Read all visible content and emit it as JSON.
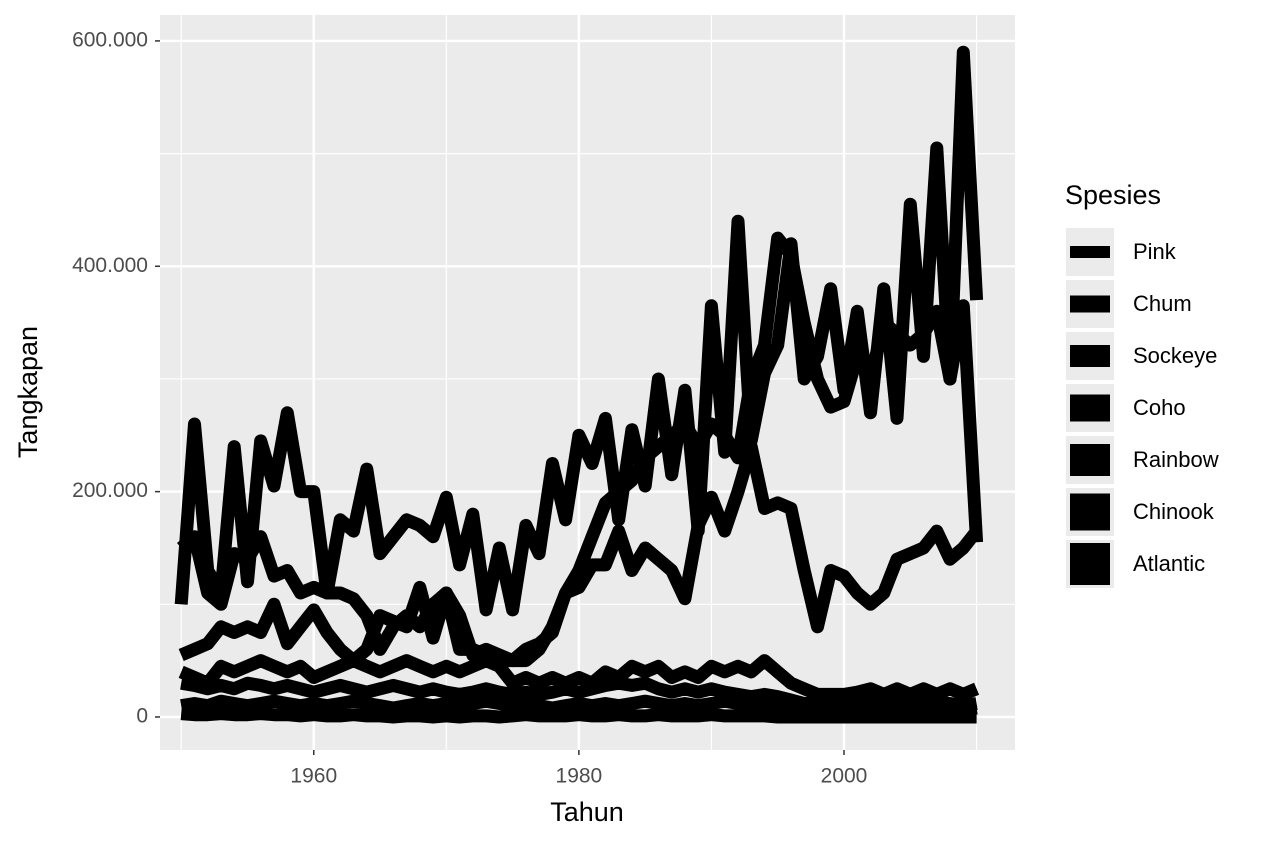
{
  "chart_data": {
    "type": "line",
    "x_label": "Tahun",
    "y_label": "Tangkapan",
    "legend_title": "Spesies",
    "x": [
      1950,
      1951,
      1952,
      1953,
      1954,
      1955,
      1956,
      1957,
      1958,
      1959,
      1960,
      1961,
      1962,
      1963,
      1964,
      1965,
      1966,
      1967,
      1968,
      1969,
      1970,
      1971,
      1972,
      1973,
      1974,
      1975,
      1976,
      1977,
      1978,
      1979,
      1980,
      1981,
      1982,
      1983,
      1984,
      1985,
      1986,
      1987,
      1988,
      1989,
      1990,
      1991,
      1992,
      1993,
      1994,
      1995,
      1996,
      1997,
      1998,
      1999,
      2000,
      2001,
      2002,
      2003,
      2004,
      2005,
      2006,
      2007,
      2008,
      2009,
      2010
    ],
    "series": [
      {
        "name": "Pink",
        "color": "#000000",
        "values": [
          100000,
          260000,
          130000,
          110000,
          240000,
          120000,
          245000,
          205000,
          270000,
          200000,
          200000,
          110000,
          175000,
          165000,
          220000,
          145000,
          160000,
          175000,
          170000,
          160000,
          195000,
          135000,
          180000,
          95000,
          150000,
          95000,
          170000,
          145000,
          225000,
          175000,
          250000,
          225000,
          265000,
          175000,
          255000,
          205000,
          300000,
          215000,
          290000,
          165000,
          365000,
          235000,
          440000,
          245000,
          305000,
          330000,
          420000,
          300000,
          320000,
          380000,
          290000,
          360000,
          270000,
          380000,
          265000,
          455000,
          320000,
          505000,
          300000,
          590000,
          370000
        ]
      },
      {
        "name": "Chum",
        "color": "#000000",
        "values": [
          150000,
          160000,
          110000,
          100000,
          145000,
          140000,
          160000,
          125000,
          130000,
          110000,
          115000,
          110000,
          110000,
          105000,
          90000,
          60000,
          80000,
          90000,
          80000,
          100000,
          110000,
          90000,
          55000,
          60000,
          55000,
          50000,
          50000,
          60000,
          80000,
          110000,
          130000,
          160000,
          190000,
          200000,
          210000,
          230000,
          240000,
          250000,
          260000,
          240000,
          260000,
          250000,
          230000,
          300000,
          330000,
          425000,
          410000,
          350000,
          300000,
          275000,
          280000,
          320000,
          300000,
          350000,
          340000,
          330000,
          340000,
          360000,
          300000,
          365000,
          155000
        ]
      },
      {
        "name": "Sockeye",
        "color": "#000000",
        "values": [
          55000,
          60000,
          65000,
          80000,
          75000,
          80000,
          75000,
          100000,
          65000,
          80000,
          95000,
          75000,
          60000,
          50000,
          60000,
          90000,
          85000,
          80000,
          115000,
          70000,
          110000,
          60000,
          60000,
          55000,
          50000,
          50000,
          60000,
          65000,
          75000,
          110000,
          115000,
          135000,
          135000,
          165000,
          130000,
          150000,
          140000,
          130000,
          105000,
          170000,
          195000,
          165000,
          200000,
          240000,
          185000,
          190000,
          185000,
          130000,
          80000,
          130000,
          125000,
          110000,
          100000,
          110000,
          140000,
          145000,
          150000,
          165000,
          140000,
          150000,
          165000
        ]
      },
      {
        "name": "Coho",
        "color": "#000000",
        "values": [
          40000,
          35000,
          30000,
          45000,
          40000,
          45000,
          50000,
          45000,
          40000,
          45000,
          35000,
          40000,
          45000,
          50000,
          45000,
          40000,
          45000,
          50000,
          45000,
          40000,
          45000,
          40000,
          45000,
          50000,
          45000,
          30000,
          35000,
          30000,
          35000,
          30000,
          35000,
          30000,
          40000,
          35000,
          45000,
          40000,
          45000,
          35000,
          40000,
          35000,
          45000,
          40000,
          45000,
          40000,
          50000,
          40000,
          30000,
          25000,
          20000,
          20000,
          20000,
          22000,
          25000,
          20000,
          25000,
          20000,
          25000,
          20000,
          25000,
          20000,
          25000
        ]
      },
      {
        "name": "Rainbow",
        "color": "#000000",
        "values": [
          10000,
          12000,
          10000,
          14000,
          12000,
          10000,
          12000,
          14000,
          12000,
          10000,
          12000,
          10000,
          12000,
          14000,
          12000,
          10000,
          8000,
          10000,
          12000,
          10000,
          12000,
          10000,
          12000,
          14000,
          12000,
          10000,
          12000,
          10000,
          8000,
          10000,
          12000,
          10000,
          12000,
          10000,
          12000,
          14000,
          12000,
          10000,
          12000,
          10000,
          12000,
          14000,
          12000,
          10000,
          12000,
          10000,
          8000,
          10000,
          8000,
          6000,
          8000,
          6000,
          8000,
          6000,
          8000,
          6000,
          8000,
          6000,
          8000,
          6000,
          8000
        ]
      },
      {
        "name": "Chinook",
        "color": "#000000",
        "values": [
          30000,
          28000,
          25000,
          28000,
          25000,
          30000,
          28000,
          25000,
          28000,
          25000,
          22000,
          25000,
          28000,
          25000,
          22000,
          25000,
          28000,
          25000,
          22000,
          25000,
          22000,
          20000,
          22000,
          25000,
          22000,
          20000,
          22000,
          20000,
          22000,
          25000,
          22000,
          25000,
          28000,
          30000,
          28000,
          30000,
          25000,
          22000,
          25000,
          22000,
          25000,
          22000,
          20000,
          18000,
          20000,
          18000,
          15000,
          12000,
          12000,
          12000,
          12000,
          14000,
          15000,
          12000,
          14000,
          15000,
          14000,
          12000,
          12000,
          10000,
          12000
        ]
      },
      {
        "name": "Atlantic",
        "color": "#000000",
        "values": [
          3000,
          2000,
          2000,
          3000,
          2000,
          2000,
          3000,
          2000,
          2000,
          1000,
          2000,
          1000,
          1000,
          2000,
          1000,
          1000,
          0,
          1000,
          1000,
          0,
          1000,
          0,
          1000,
          1000,
          0,
          1000,
          2000,
          1000,
          1000,
          1000,
          2000,
          1000,
          1000,
          2000,
          1000,
          1000,
          2000,
          1000,
          1000,
          1000,
          2000,
          1000,
          1000,
          1000,
          1000,
          0,
          0,
          0,
          0,
          0,
          0,
          0,
          0,
          0,
          0,
          0,
          0,
          0,
          0,
          0,
          0
        ]
      }
    ],
    "xlim": [
      1948.4,
      2012.9
    ],
    "xticks": [
      1960,
      1980,
      2000
    ],
    "ylim": [
      -29300,
      623000
    ],
    "yticks": [
      0,
      {
        "value": 200000,
        "label": "200.000"
      },
      {
        "value": 400000,
        "label": "400.000"
      },
      {
        "value": 600000,
        "label": "600.000"
      }
    ],
    "grid": true
  }
}
